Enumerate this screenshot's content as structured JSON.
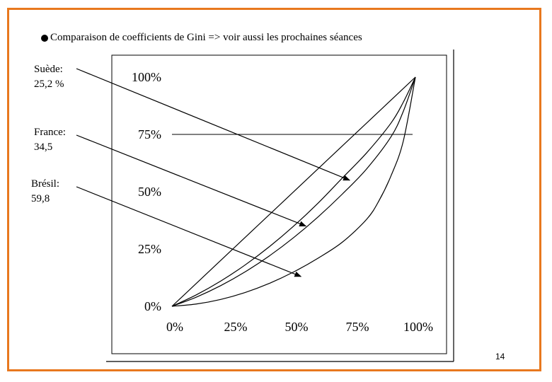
{
  "title": "Comparaison de coefficients de Gini => voir aussi les prochaines séances",
  "page_number": "14",
  "countries": [
    {
      "name": "Suède:",
      "value": "25,2 %"
    },
    {
      "name": "France:",
      "value": "34,5"
    },
    {
      "name": "Brésil:",
      "value": "59,8"
    }
  ],
  "colors": {
    "frame": "#e8781e",
    "lines": "#000000"
  },
  "chart_data": {
    "type": "line",
    "title": "",
    "xlabel": "",
    "ylabel": "",
    "xlim": [
      0,
      100
    ],
    "ylim": [
      0,
      100
    ],
    "x_ticks": [
      "0%",
      "25%",
      "50%",
      "75%",
      "100%"
    ],
    "y_ticks": [
      "0%",
      "25%",
      "50%",
      "75%",
      "100%"
    ],
    "grid": {
      "horizontal_at": [
        75
      ]
    },
    "series": [
      {
        "name": "",
        "kind": "equality-line",
        "x": [
          0,
          100
        ],
        "y": [
          0,
          100
        ]
      },
      {
        "name": "Suède",
        "x": [
          0,
          10,
          20,
          30,
          40,
          50,
          60,
          70,
          80,
          90,
          95,
          100
        ],
        "y": [
          0,
          5,
          11,
          18,
          26,
          35,
          45,
          56,
          67,
          80,
          89,
          100
        ]
      },
      {
        "name": "France",
        "x": [
          0,
          10,
          20,
          30,
          40,
          50,
          60,
          70,
          80,
          90,
          95,
          100
        ],
        "y": [
          0,
          4,
          9,
          15,
          22,
          30,
          39,
          49,
          60,
          74,
          85,
          100
        ]
      },
      {
        "name": "Brésil",
        "x": [
          0,
          10,
          20,
          30,
          40,
          50,
          60,
          70,
          80,
          85,
          90,
          95,
          100
        ],
        "y": [
          0,
          1,
          3,
          6,
          10,
          15,
          21,
          28,
          38,
          46,
          57,
          72,
          100
        ]
      }
    ],
    "annotations": [
      {
        "label": "Suède",
        "target": {
          "x": 73,
          "y": 55
        }
      },
      {
        "label": "France",
        "target": {
          "x": 55,
          "y": 35
        }
      },
      {
        "label": "Brésil",
        "target": {
          "x": 53,
          "y": 13
        }
      }
    ]
  }
}
